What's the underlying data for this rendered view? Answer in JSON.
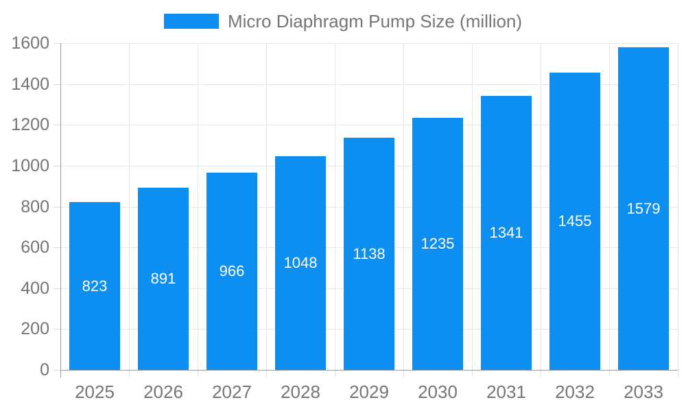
{
  "legend": {
    "label": "Micro Diaphragm Pump Size (million)"
  },
  "chart_data": {
    "type": "bar",
    "title": "Micro Diaphragm Pump Size (million)",
    "categories": [
      "2025",
      "2026",
      "2027",
      "2028",
      "2029",
      "2030",
      "2031",
      "2032",
      "2033"
    ],
    "values": [
      823,
      891,
      966,
      1048,
      1138,
      1235,
      1341,
      1455,
      1579
    ],
    "value_labels": [
      "823",
      "891",
      "966",
      "1048",
      "1138",
      "1235",
      "1341",
      "1455",
      "1579"
    ],
    "xlabel": "",
    "ylabel": "",
    "ylim": [
      0,
      1600
    ],
    "ytick_step": 200,
    "ytick_labels": [
      "0",
      "200",
      "400",
      "600",
      "800",
      "1000",
      "1200",
      "1400",
      "1600"
    ],
    "grid": true,
    "legend_position": "top",
    "colors": {
      "bar": "#0d8ff2",
      "value_label_text": "#ffffff",
      "axis_text": "#757575",
      "gridline": "#e6e6e6",
      "axis_line": "#9a9a9a",
      "tick": "#dcdcdc"
    }
  }
}
